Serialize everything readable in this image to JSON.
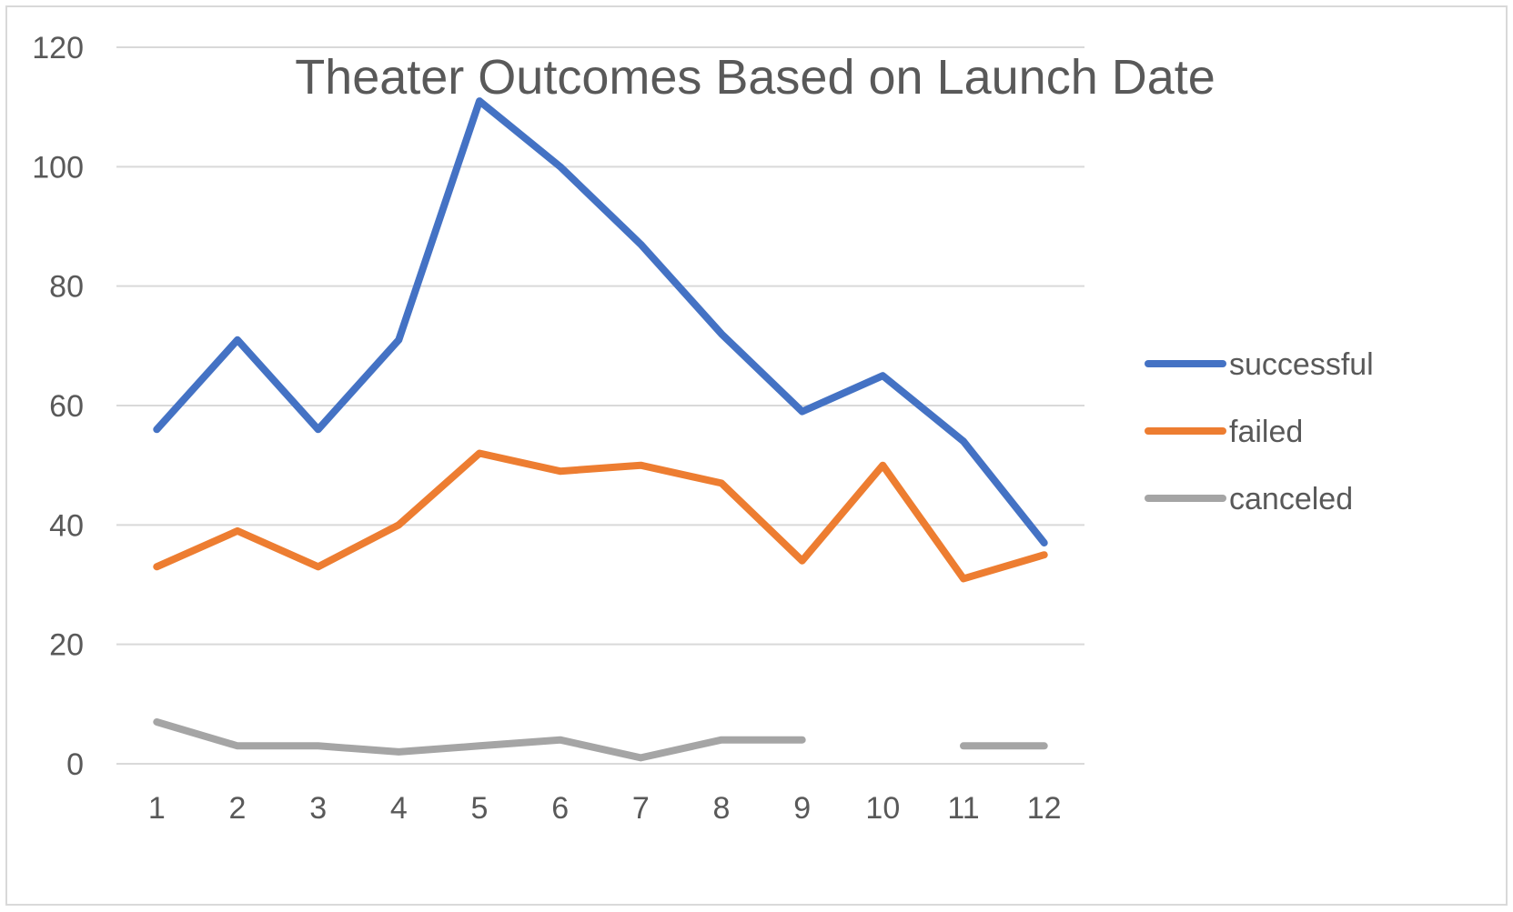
{
  "chart_data": {
    "type": "line",
    "title": "Theater Outcomes Based on Launch Date",
    "xlabel": "",
    "ylabel": "",
    "categories": [
      "1",
      "2",
      "3",
      "4",
      "5",
      "6",
      "7",
      "8",
      "9",
      "10",
      "11",
      "12"
    ],
    "ylim": [
      0,
      120
    ],
    "yticks": [
      0,
      20,
      40,
      60,
      80,
      100,
      120
    ],
    "grid": true,
    "legend_position": "right",
    "series": [
      {
        "name": "successful",
        "color": "#4472C4",
        "values": [
          56,
          71,
          56,
          71,
          111,
          100,
          87,
          72,
          59,
          65,
          54,
          37
        ]
      },
      {
        "name": "failed",
        "color": "#ED7D31",
        "values": [
          33,
          39,
          33,
          40,
          52,
          49,
          50,
          47,
          34,
          50,
          31,
          35
        ]
      },
      {
        "name": "canceled",
        "color": "#A5A5A5",
        "values": [
          7,
          3,
          3,
          2,
          3,
          4,
          1,
          4,
          4,
          null,
          3,
          3
        ]
      }
    ]
  }
}
